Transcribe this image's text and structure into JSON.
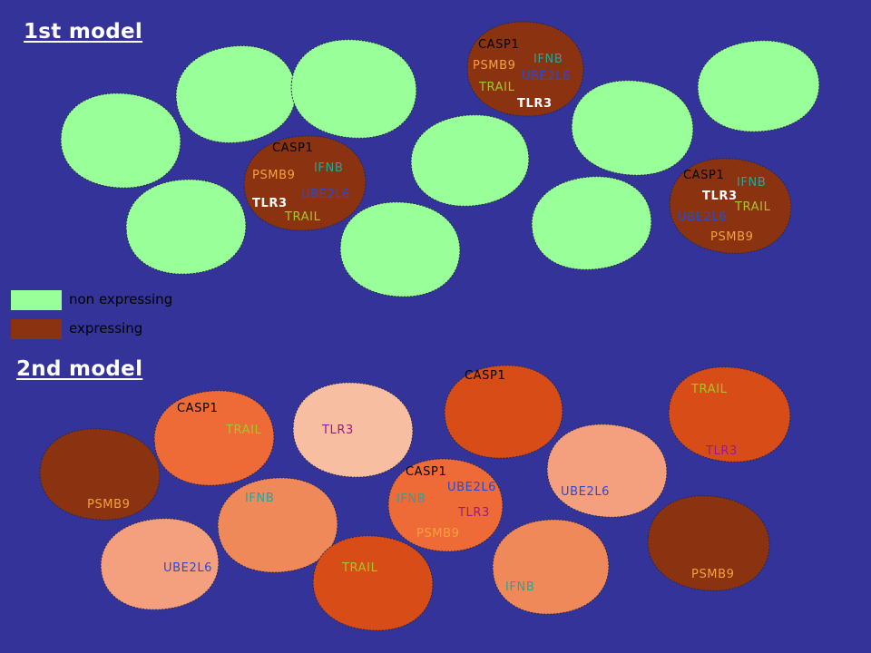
{
  "models": [
    {
      "title": "1st model"
    },
    {
      "title": "2nd model"
    }
  ],
  "legend": {
    "items": [
      {
        "label": "non expressing",
        "color": "#99ff99"
      },
      {
        "label": "expressing",
        "color": "#8b3311"
      }
    ]
  },
  "colors": {
    "background": "#333399",
    "non_expressing": "#99ff99",
    "expressing": "#8b3311",
    "shade_dark": "#8b3311",
    "shade_deep_orange": "#d84c17",
    "shade_orange": "#ee6a36",
    "shade_medium": "#f0895a",
    "shade_light": "#f4a07f",
    "shade_pale": "#f7bea2"
  },
  "gene_colors": {
    "CASP1": "#000000",
    "IFNB": "#2aa39a",
    "PSMB9": "#f7a13b",
    "UBE2L6": "#2b4ad0",
    "TRAIL": "#a8c526",
    "TLR3_model1": "#ffffff",
    "TLR3_model2": "#9a1a8c"
  },
  "gene_labels": [
    "CASP1",
    "IFNB",
    "PSMB9",
    "UBE2L6",
    "TRAIL",
    "TLR3"
  ]
}
